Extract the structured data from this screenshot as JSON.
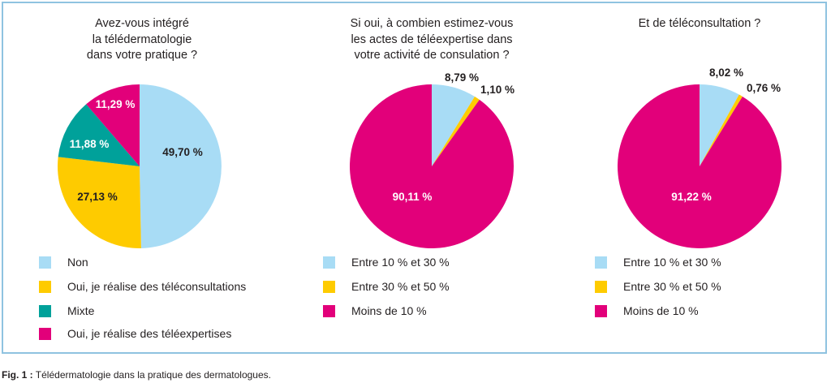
{
  "colors": {
    "blue": "#a8dcf5",
    "yellow": "#fecb00",
    "teal": "#00a19a",
    "magenta": "#e2007a",
    "frame": "#8fc3e0"
  },
  "caption": {
    "prefix": "Fig. 1 :",
    "text": "Télédermatologie dans la pratique des dermatologues."
  },
  "chart_data": [
    {
      "type": "pie",
      "title_lines": [
        "Avez-vous intégré",
        "la télédermatologie",
        "dans votre pratique ?"
      ],
      "slices": [
        {
          "label": "Non",
          "value": 49.7,
          "text": "49,70 %",
          "color": "#a8dcf5"
        },
        {
          "label": "Oui, je réalise des téléconsultations",
          "value": 27.13,
          "text": "27,13 %",
          "color": "#fecb00"
        },
        {
          "label": "Mixte",
          "value": 11.88,
          "text": "11,88 %",
          "color": "#00a19a"
        },
        {
          "label": "Oui, je réalise des téléexpertises",
          "value": 11.29,
          "text": "11,29 %",
          "color": "#e2007a"
        }
      ],
      "legend": [
        "Non",
        "Oui, je réalise des téléconsultations",
        "Mixte",
        "Oui, je réalise des téléexpertises"
      ]
    },
    {
      "type": "pie",
      "title_lines": [
        "Si oui, à combien estimez-vous",
        "les actes de téléexpertise dans",
        "votre activité de consulation ?"
      ],
      "slices": [
        {
          "label": "Entre 10 % et 30 %",
          "value": 8.79,
          "text": "8,79 %",
          "color": "#a8dcf5"
        },
        {
          "label": "Entre 30 % et 50 %",
          "value": 1.1,
          "text": "1,10 %",
          "color": "#fecb00"
        },
        {
          "label": "Moins de 10 %",
          "value": 90.11,
          "text": "90,11 %",
          "color": "#e2007a"
        }
      ],
      "legend": [
        "Entre 10 % et 30 %",
        "Entre 30 % et 50 %",
        "Moins de 10 %"
      ]
    },
    {
      "type": "pie",
      "title_lines": [
        "Et de téléconsultation ?"
      ],
      "slices": [
        {
          "label": "Entre 10 % et 30 %",
          "value": 8.02,
          "text": "8,02 %",
          "color": "#a8dcf5"
        },
        {
          "label": "Entre 30 % et 50 %",
          "value": 0.76,
          "text": "0,76 %",
          "color": "#fecb00"
        },
        {
          "label": "Moins de 10 %",
          "value": 91.22,
          "text": "91,22 %",
          "color": "#e2007a"
        }
      ],
      "legend": [
        "Entre 10 % et 30 %",
        "Entre 30 % et 50 %",
        "Moins de 10 %"
      ]
    }
  ]
}
